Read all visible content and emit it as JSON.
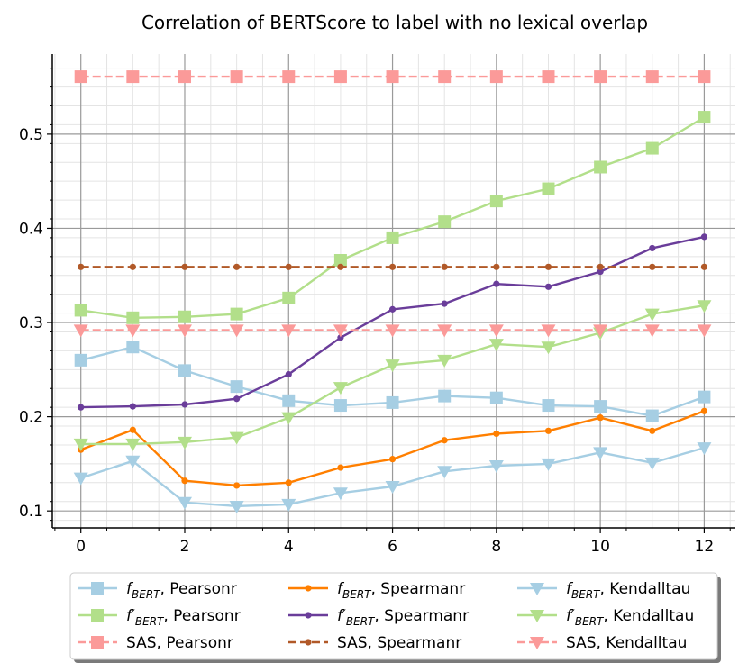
{
  "chart_data": {
    "type": "line",
    "title": "Correlation of BERTScore to label with no lexical overlap",
    "xlabel": "",
    "ylabel": "",
    "x": [
      0,
      1,
      2,
      3,
      4,
      5,
      6,
      7,
      8,
      9,
      10,
      11,
      12
    ],
    "xlim": [
      -0.55,
      12.6
    ],
    "ylim": [
      0.082,
      0.585
    ],
    "xticks": [
      "0",
      "2",
      "4",
      "6",
      "8",
      "10",
      "12"
    ],
    "yticks": [
      "0.1",
      "0.2",
      "0.3",
      "0.4",
      "0.5"
    ],
    "grid": true,
    "legend_position": "bottom",
    "series": [
      {
        "name": "f_BERT, Pearsonr",
        "label_main": "f",
        "label_sub": "BERT",
        "label_prime": "",
        "label_rest": ", Pearsonr",
        "color": "#a6cee3",
        "marker": "square",
        "dash": "solid",
        "values": [
          0.26,
          0.274,
          0.249,
          0.232,
          0.217,
          0.212,
          0.215,
          0.222,
          0.22,
          0.212,
          0.211,
          0.201,
          0.221
        ]
      },
      {
        "name": "f'_BERT, Pearsonr",
        "label_main": "f",
        "label_sub": "BERT",
        "label_prime": "′",
        "label_rest": ", Pearsonr",
        "color": "#b2df8a",
        "marker": "square",
        "dash": "solid",
        "values": [
          0.313,
          0.305,
          0.306,
          0.309,
          0.326,
          0.366,
          0.39,
          0.407,
          0.429,
          0.442,
          0.465,
          0.485,
          0.518
        ]
      },
      {
        "name": "SAS, Pearsonr",
        "label_main": "SAS",
        "label_sub": "",
        "label_prime": "",
        "label_rest": ", Pearsonr",
        "color": "#fb9a99",
        "marker": "square",
        "dash": "dashed",
        "values": [
          0.561,
          0.561,
          0.561,
          0.561,
          0.561,
          0.561,
          0.561,
          0.561,
          0.561,
          0.561,
          0.561,
          0.561,
          0.561
        ]
      },
      {
        "name": "f_BERT, Spearmanr",
        "label_main": "f",
        "label_sub": "BERT",
        "label_prime": "",
        "label_rest": ", Spearmanr",
        "color": "#ff7f00",
        "marker": "dot",
        "dash": "solid",
        "values": [
          0.165,
          0.186,
          0.132,
          0.127,
          0.13,
          0.146,
          0.155,
          0.175,
          0.182,
          0.185,
          0.199,
          0.185,
          0.206
        ]
      },
      {
        "name": "f'_BERT, Spearmanr",
        "label_main": "f",
        "label_sub": "BERT",
        "label_prime": "′",
        "label_rest": ", Spearmanr",
        "color": "#6a3d9a",
        "marker": "dot",
        "dash": "solid",
        "values": [
          0.21,
          0.211,
          0.213,
          0.219,
          0.245,
          0.284,
          0.314,
          0.32,
          0.341,
          0.338,
          0.354,
          0.379,
          0.391
        ]
      },
      {
        "name": "SAS, Spearmanr",
        "label_main": "SAS",
        "label_sub": "",
        "label_prime": "",
        "label_rest": ", Spearmanr",
        "color": "#b15928",
        "marker": "dot",
        "dash": "dashed",
        "values": [
          0.359,
          0.359,
          0.359,
          0.359,
          0.359,
          0.359,
          0.359,
          0.359,
          0.359,
          0.359,
          0.359,
          0.359,
          0.359
        ]
      },
      {
        "name": "f_BERT, Kendalltau",
        "label_main": "f",
        "label_sub": "BERT",
        "label_prime": "",
        "label_rest": ", Kendalltau",
        "color": "#a6cee3",
        "marker": "triangle-down",
        "dash": "solid",
        "values": [
          0.135,
          0.153,
          0.109,
          0.105,
          0.107,
          0.119,
          0.126,
          0.142,
          0.148,
          0.15,
          0.162,
          0.151,
          0.167
        ]
      },
      {
        "name": "f'_BERT, Kendalltau",
        "label_main": "f",
        "label_sub": "BERT",
        "label_prime": "′",
        "label_rest": ", Kendalltau",
        "color": "#b2df8a",
        "marker": "triangle-down",
        "dash": "solid",
        "values": [
          0.171,
          0.171,
          0.173,
          0.178,
          0.199,
          0.231,
          0.255,
          0.26,
          0.277,
          0.274,
          0.289,
          0.309,
          0.318
        ]
      },
      {
        "name": "SAS, Kendalltau",
        "label_main": "SAS",
        "label_sub": "",
        "label_prime": "",
        "label_rest": ", Kendalltau",
        "color": "#fb9a99",
        "marker": "triangle-down",
        "dash": "dashed",
        "values": [
          0.292,
          0.292,
          0.292,
          0.292,
          0.292,
          0.292,
          0.292,
          0.292,
          0.292,
          0.292,
          0.292,
          0.292,
          0.292
        ]
      }
    ]
  }
}
